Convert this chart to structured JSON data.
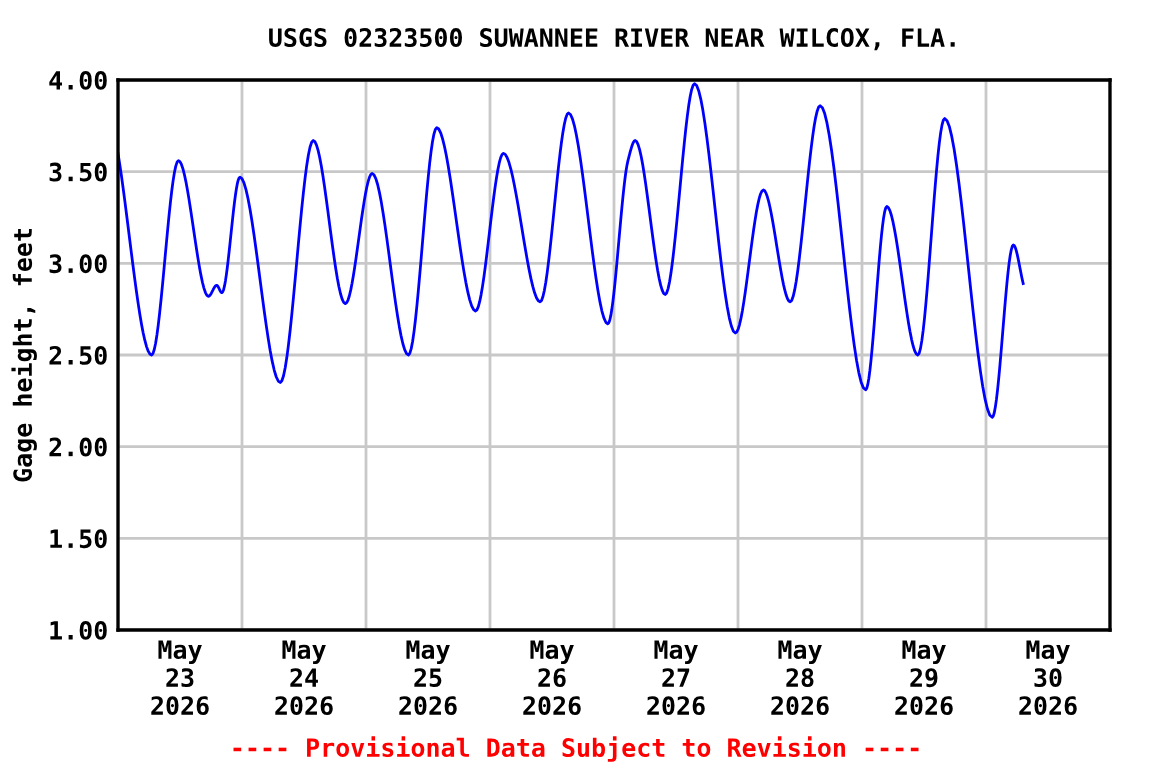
{
  "chart_data": {
    "type": "line",
    "title": "USGS 02323500 SUWANNEE RIVER NEAR WILCOX, FLA.",
    "ylabel": "Gage height, feet",
    "annotations": [
      "---- Provisional Data Subject to Revision ----"
    ],
    "x": [
      "2026-05-23T00:00",
      "2026-05-23T06:30",
      "2026-05-23T11:42",
      "2026-05-23T17:30",
      "2026-05-23T19:06",
      "2026-05-23T20:06",
      "2026-05-23T23:36",
      "2026-05-24T07:24",
      "2026-05-24T13:48",
      "2026-05-24T20:00",
      "2026-05-25T01:12",
      "2026-05-25T08:12",
      "2026-05-25T13:42",
      "2026-05-25T21:12",
      "2026-05-26T02:36",
      "2026-05-26T09:42",
      "2026-05-26T15:12",
      "2026-05-26T22:48",
      "2026-05-27T02:42",
      "2026-05-27T04:06",
      "2026-05-27T09:54",
      "2026-05-27T15:36",
      "2026-05-27T23:30",
      "2026-05-28T04:54",
      "2026-05-28T10:06",
      "2026-05-28T15:54",
      "2026-05-29T00:42",
      "2026-05-29T04:48",
      "2026-05-29T10:48",
      "2026-05-29T16:00",
      "2026-05-30T01:12",
      "2026-05-30T05:18",
      "2026-05-30T07:12"
    ],
    "series": [
      {
        "color": "#0000ff",
        "values": [
          3.6,
          2.5,
          3.56,
          2.82,
          2.88,
          2.84,
          3.47,
          2.35,
          3.67,
          2.78,
          3.49,
          2.5,
          3.74,
          2.74,
          3.6,
          2.79,
          3.82,
          2.67,
          3.56,
          3.67,
          2.83,
          3.98,
          2.62,
          3.4,
          2.79,
          3.86,
          2.31,
          3.31,
          2.5,
          3.79,
          2.16,
          3.1,
          2.89
        ]
      }
    ],
    "xlim": [
      "2026-05-23T00:00",
      "2026-05-31T00:00"
    ],
    "xticks": [
      {
        "value": "2026-05-23T00:00",
        "label": null
      },
      {
        "value": "2026-05-23T12:00",
        "label": "May\n23\n2026"
      },
      {
        "value": "2026-05-24T00:00",
        "label": null
      },
      {
        "value": "2026-05-24T12:00",
        "label": "May\n24\n2026"
      },
      {
        "value": "2026-05-25T00:00",
        "label": null
      },
      {
        "value": "2026-05-25T12:00",
        "label": "May\n25\n2026"
      },
      {
        "value": "2026-05-26T00:00",
        "label": null
      },
      {
        "value": "2026-05-26T12:00",
        "label": "May\n26\n2026"
      },
      {
        "value": "2026-05-27T00:00",
        "label": null
      },
      {
        "value": "2026-05-27T12:00",
        "label": "May\n27\n2026"
      },
      {
        "value": "2026-05-28T00:00",
        "label": null
      },
      {
        "value": "2026-05-28T12:00",
        "label": "May\n28\n2026"
      },
      {
        "value": "2026-05-29T00:00",
        "label": null
      },
      {
        "value": "2026-05-29T12:00",
        "label": "May\n29\n2026"
      },
      {
        "value": "2026-05-30T00:00",
        "label": null
      },
      {
        "value": "2026-05-30T12:00",
        "label": "May\n30\n2026"
      },
      {
        "value": "2026-05-31T00:00",
        "label": null
      }
    ],
    "ylim": [
      1.0,
      4.0
    ],
    "yticks": [
      {
        "value": 1.0,
        "label": "1.00"
      },
      {
        "value": 1.5,
        "label": "1.50"
      },
      {
        "value": 2.0,
        "label": "2.00"
      },
      {
        "value": 2.5,
        "label": "2.50"
      },
      {
        "value": 3.0,
        "label": "3.00"
      },
      {
        "value": 3.5,
        "label": "3.50"
      },
      {
        "value": 4.0,
        "label": "4.00"
      }
    ],
    "grid": true,
    "legend": false,
    "marker": "none",
    "line_style": "solid"
  }
}
